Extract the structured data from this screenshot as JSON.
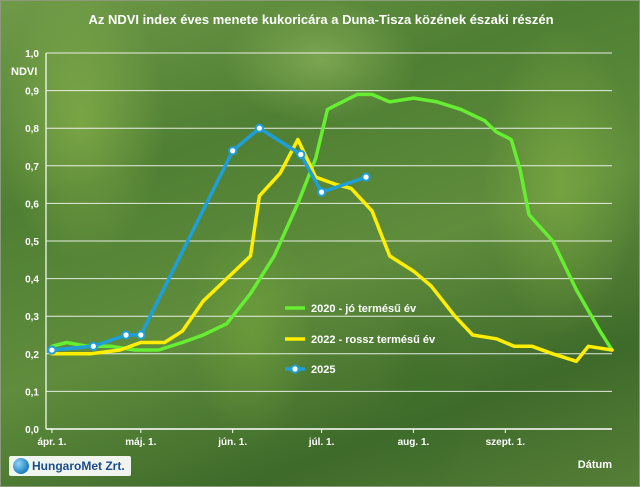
{
  "brand": {
    "name": "HungaroMet Zrt.",
    "icon": "hungaromet-logo-icon"
  },
  "chart_data": {
    "type": "line",
    "title": "Az NDVI index éves menete kukoricára a Duna-Tisza közének északi részén",
    "xlabel": "Dátum",
    "ylabel": "NDVI",
    "ylim": [
      0,
      1
    ],
    "yticks": [
      "0,0",
      "0,1",
      "0,2",
      "0,3",
      "0,4",
      "0,5",
      "0,6",
      "0,7",
      "0,8",
      "0,9",
      "1,0"
    ],
    "xrange": [
      "03-30",
      "10-07"
    ],
    "xticks": [
      {
        "label": "ápr. 1.",
        "date": "04-01"
      },
      {
        "label": "máj. 1.",
        "date": "05-01"
      },
      {
        "label": "jún. 1.",
        "date": "06-01"
      },
      {
        "label": "júl. 1.",
        "date": "07-01"
      },
      {
        "label": "aug. 1.",
        "date": "08-01"
      },
      {
        "label": "szept. 1.",
        "date": "09-01"
      }
    ],
    "grid": true,
    "legend_position": "center-right",
    "series": [
      {
        "name": "2020 - jó termésű év",
        "color": "#66ee33",
        "marker": false,
        "points": [
          [
            "04-01",
            0.22
          ],
          [
            "04-06",
            0.23
          ],
          [
            "04-13",
            0.22
          ],
          [
            "04-21",
            0.22
          ],
          [
            "04-29",
            0.21
          ],
          [
            "05-07",
            0.21
          ],
          [
            "05-15",
            0.23
          ],
          [
            "05-22",
            0.25
          ],
          [
            "05-30",
            0.28
          ],
          [
            "06-07",
            0.36
          ],
          [
            "06-15",
            0.46
          ],
          [
            "06-23",
            0.6
          ],
          [
            "06-29",
            0.72
          ],
          [
            "07-03",
            0.85
          ],
          [
            "07-08",
            0.87
          ],
          [
            "07-13",
            0.89
          ],
          [
            "07-18",
            0.89
          ],
          [
            "07-24",
            0.87
          ],
          [
            "08-01",
            0.88
          ],
          [
            "08-09",
            0.87
          ],
          [
            "08-17",
            0.85
          ],
          [
            "08-25",
            0.82
          ],
          [
            "08-29",
            0.79
          ],
          [
            "09-03",
            0.77
          ],
          [
            "09-06",
            0.69
          ],
          [
            "09-09",
            0.57
          ],
          [
            "09-17",
            0.5
          ],
          [
            "09-25",
            0.37
          ],
          [
            "10-03",
            0.26
          ],
          [
            "10-07",
            0.21
          ]
        ]
      },
      {
        "name": "2022 - rossz termésű év",
        "color": "#ffee00",
        "marker": false,
        "points": [
          [
            "04-01",
            0.2
          ],
          [
            "04-14",
            0.2
          ],
          [
            "04-24",
            0.21
          ],
          [
            "05-01",
            0.23
          ],
          [
            "05-09",
            0.23
          ],
          [
            "05-15",
            0.26
          ],
          [
            "05-22",
            0.34
          ],
          [
            "05-30",
            0.4
          ],
          [
            "06-07",
            0.46
          ],
          [
            "06-10",
            0.62
          ],
          [
            "06-17",
            0.68
          ],
          [
            "06-23",
            0.77
          ],
          [
            "06-29",
            0.67
          ],
          [
            "07-06",
            0.65
          ],
          [
            "07-11",
            0.64
          ],
          [
            "07-18",
            0.58
          ],
          [
            "07-24",
            0.46
          ],
          [
            "08-01",
            0.42
          ],
          [
            "08-07",
            0.38
          ],
          [
            "08-15",
            0.3
          ],
          [
            "08-21",
            0.25
          ],
          [
            "08-29",
            0.24
          ],
          [
            "09-04",
            0.22
          ],
          [
            "09-10",
            0.22
          ],
          [
            "09-17",
            0.2
          ],
          [
            "09-25",
            0.18
          ],
          [
            "09-29",
            0.22
          ],
          [
            "10-07",
            0.21
          ]
        ]
      },
      {
        "name": "2025",
        "color": "#1e9fd8",
        "marker": true,
        "points": [
          [
            "04-01",
            0.21
          ],
          [
            "04-15",
            0.22
          ],
          [
            "04-26",
            0.25
          ],
          [
            "05-01",
            0.25
          ],
          [
            "06-01",
            0.74
          ],
          [
            "06-10",
            0.8
          ],
          [
            "06-24",
            0.73
          ],
          [
            "07-01",
            0.63
          ],
          [
            "07-16",
            0.67
          ]
        ]
      }
    ]
  }
}
